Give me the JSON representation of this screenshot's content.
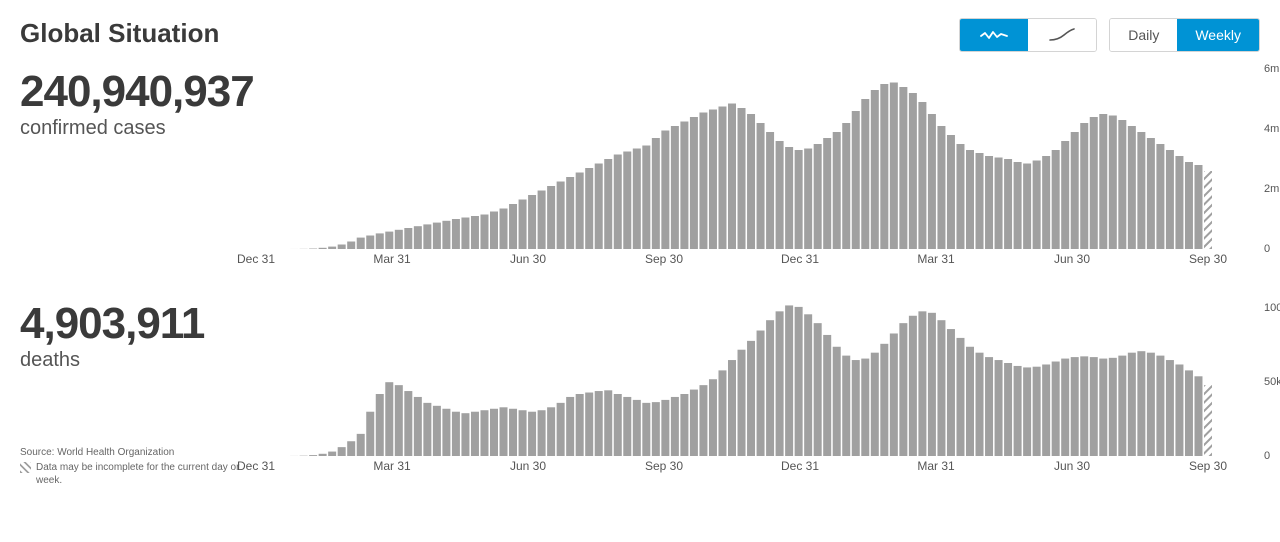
{
  "title": "Global Situation",
  "controls": {
    "viewToggle": {
      "rawActive": true,
      "curveActive": false
    },
    "periodToggle": {
      "daily": "Daily",
      "weekly": "Weekly",
      "active": "weekly"
    }
  },
  "metrics": {
    "cases": {
      "value": "240,940,937",
      "label": "confirmed cases"
    },
    "deaths": {
      "value": "4,903,911",
      "label": "deaths"
    }
  },
  "footer": {
    "source": "Source: World Health Organization",
    "incompleteNote": "Data may be incomplete for the current day or week."
  },
  "style": {
    "barColor": "#a0a0a0",
    "hatchColor": "#a0a0a0",
    "background": "#ffffff",
    "accent": "#0093d5",
    "textDark": "#3a3a3a",
    "textMid": "#555555",
    "barWidthPx": 8,
    "barGapPx": 2.1
  },
  "charts": {
    "plotWidthPx": 960,
    "cases": {
      "type": "bar",
      "heightPx": 180,
      "ymax": 6000000,
      "ytick_step": 2000000,
      "yticks": [
        {
          "v": 0,
          "label": "0"
        },
        {
          "v": 2000000,
          "label": "2m"
        },
        {
          "v": 4000000,
          "label": "4m"
        },
        {
          "v": 6000000,
          "label": "6m"
        }
      ],
      "xticks": [
        "Dec 31",
        "Mar 31",
        "Jun 30",
        "Sep 30",
        "Dec 31",
        "Mar 31",
        "Jun 30",
        "Sep 30"
      ],
      "lastBarIncomplete": true,
      "values": [
        0,
        0,
        0,
        0,
        1000,
        5000,
        15000,
        40000,
        80000,
        150000,
        250000,
        380000,
        450000,
        520000,
        580000,
        640000,
        700000,
        760000,
        820000,
        880000,
        940000,
        1000000,
        1050000,
        1100000,
        1150000,
        1250000,
        1350000,
        1500000,
        1650000,
        1800000,
        1950000,
        2100000,
        2250000,
        2400000,
        2550000,
        2700000,
        2850000,
        3000000,
        3150000,
        3250000,
        3350000,
        3450000,
        3700000,
        3950000,
        4100000,
        4250000,
        4400000,
        4550000,
        4650000,
        4750000,
        4850000,
        4700000,
        4500000,
        4200000,
        3900000,
        3600000,
        3400000,
        3300000,
        3350000,
        3500000,
        3700000,
        3900000,
        4200000,
        4600000,
        5000000,
        5300000,
        5500000,
        5550000,
        5400000,
        5200000,
        4900000,
        4500000,
        4100000,
        3800000,
        3500000,
        3300000,
        3200000,
        3100000,
        3050000,
        3000000,
        2900000,
        2850000,
        2950000,
        3100000,
        3300000,
        3600000,
        3900000,
        4200000,
        4400000,
        4500000,
        4450000,
        4300000,
        4100000,
        3900000,
        3700000,
        3500000,
        3300000,
        3100000,
        2900000,
        2800000,
        2600000
      ]
    },
    "deaths": {
      "type": "bar",
      "heightPx": 155,
      "ymax": 105000,
      "ytick_step": 50000,
      "yticks": [
        {
          "v": 0,
          "label": "0"
        },
        {
          "v": 50000,
          "label": "50k"
        },
        {
          "v": 100000,
          "label": "100k"
        }
      ],
      "xticks": [
        "Dec 31",
        "Mar 31",
        "Jun 30",
        "Sep 30",
        "Dec 31",
        "Mar 31",
        "Jun 30",
        "Sep 30"
      ],
      "lastBarIncomplete": true,
      "values": [
        0,
        0,
        0,
        0,
        50,
        200,
        600,
        1500,
        3000,
        6000,
        10000,
        15000,
        30000,
        42000,
        50000,
        48000,
        44000,
        40000,
        36000,
        34000,
        32000,
        30000,
        29000,
        30000,
        31000,
        32000,
        33000,
        32000,
        31000,
        30000,
        31000,
        33000,
        36000,
        40000,
        42000,
        43000,
        44000,
        44500,
        42000,
        40000,
        38000,
        36000,
        36500,
        38000,
        40000,
        42000,
        45000,
        48000,
        52000,
        58000,
        65000,
        72000,
        78000,
        85000,
        92000,
        98000,
        102000,
        101000,
        96000,
        90000,
        82000,
        74000,
        68000,
        65000,
        66000,
        70000,
        76000,
        83000,
        90000,
        95000,
        98000,
        97000,
        92000,
        86000,
        80000,
        74000,
        70000,
        67000,
        65000,
        63000,
        61000,
        60000,
        60500,
        62000,
        64000,
        66000,
        67000,
        67500,
        67000,
        66000,
        66500,
        68000,
        70000,
        71000,
        70000,
        68000,
        65000,
        62000,
        58000,
        54000,
        48000
      ]
    }
  }
}
